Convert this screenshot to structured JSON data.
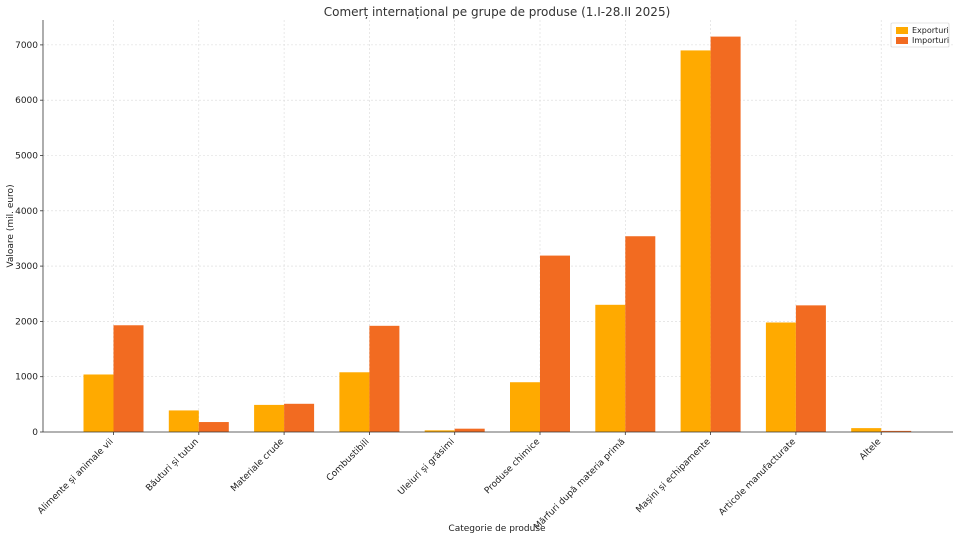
{
  "chart_data": {
    "type": "bar",
    "title": "Comerț internațional pe grupe de produse (1.I-28.II 2025)",
    "xlabel": "Categorie de produse",
    "ylabel": "Valoare (mil. euro)",
    "categories": [
      "Alimente și animale vii",
      "Băuturi și tutun",
      "Materiale crude",
      "Combustibili",
      "Uleiuri și grăsimi",
      "Produse chimice",
      "Mărfuri după materia primă",
      "Mașini și echipamente",
      "Articole manufacturate",
      "Altele"
    ],
    "series": [
      {
        "name": "Exporturi",
        "color": "#FFAA00",
        "values": [
          1040,
          390,
          490,
          1080,
          30,
          900,
          2300,
          6900,
          1980,
          70
        ]
      },
      {
        "name": "Importuri",
        "color": "#F26B21",
        "values": [
          1930,
          180,
          510,
          1920,
          60,
          3190,
          3540,
          7150,
          2290,
          20
        ]
      }
    ],
    "ylim": [
      0,
      7450
    ],
    "yticks": [
      0,
      1000,
      2000,
      3000,
      4000,
      5000,
      6000,
      7000
    ],
    "grid": true,
    "legend_position": "top-right"
  }
}
